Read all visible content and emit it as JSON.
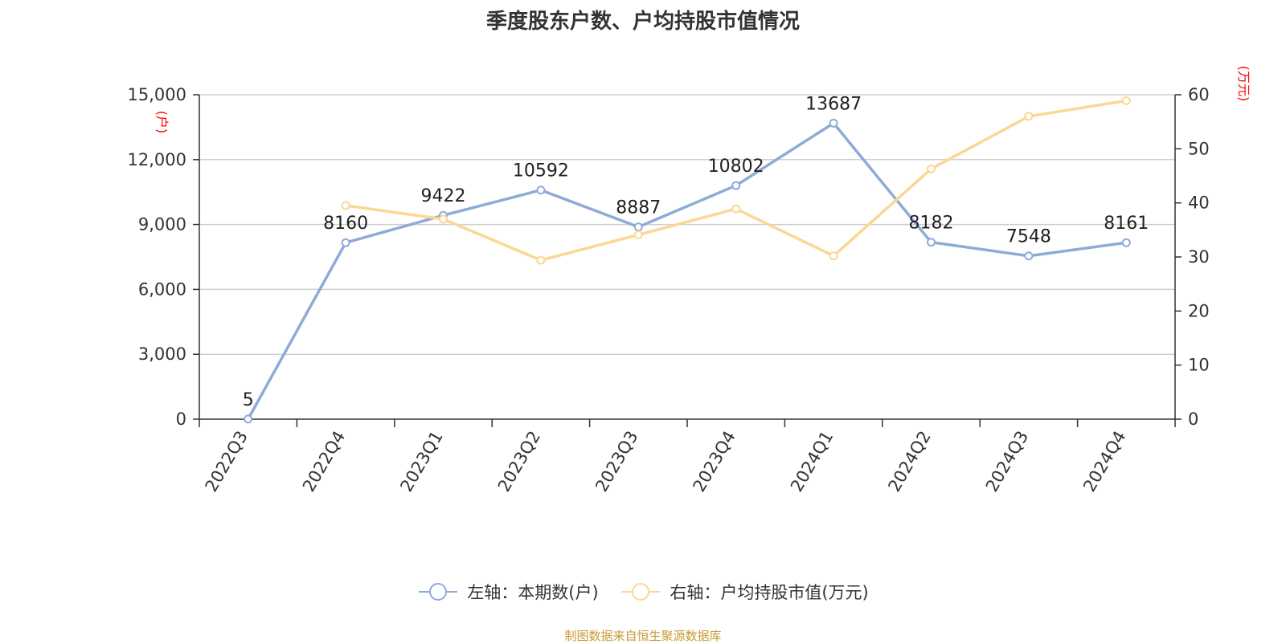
{
  "chart_data": {
    "type": "line",
    "title": "季度股东户数、户均持股市值情况",
    "categories": [
      "2022Q3",
      "2022Q4",
      "2023Q1",
      "2023Q2",
      "2023Q3",
      "2023Q4",
      "2024Q1",
      "2024Q2",
      "2024Q3",
      "2024Q4"
    ],
    "series": [
      {
        "name": "左轴：本期数(户)",
        "axis": "left",
        "color": "#8eabd8",
        "values": [
          5,
          8160,
          9422,
          10592,
          8887,
          10802,
          13687,
          8182,
          7548,
          8161
        ],
        "data_labels": [
          "5",
          "8160",
          "9422",
          "10592",
          "8887",
          "10802",
          "13687",
          "8182",
          "7548",
          "8161"
        ]
      },
      {
        "name": "右轴：户均持股市值(万元)",
        "axis": "right",
        "color": "#fbd794",
        "values": [
          null,
          39.5,
          37.0,
          29.4,
          34.1,
          38.9,
          30.2,
          46.3,
          56.0,
          58.9
        ]
      }
    ],
    "y_left": {
      "label": "(户)",
      "ylim": [
        0,
        15000
      ],
      "ticks": [
        0,
        3000,
        6000,
        9000,
        12000,
        15000
      ],
      "tick_labels": [
        "0",
        "3,000",
        "6,000",
        "9,000",
        "12,000",
        "15,000"
      ]
    },
    "y_right": {
      "label": "(万元)",
      "ylim": [
        0,
        60
      ],
      "ticks": [
        0,
        10,
        20,
        30,
        40,
        50,
        60
      ],
      "tick_labels": [
        "0",
        "10",
        "20",
        "30",
        "40",
        "50",
        "60"
      ]
    },
    "grid": true,
    "legend_position": "bottom-center",
    "axis_label_color": "#ff0000"
  },
  "source_note": "制图数据来自恒生聚源数据库"
}
